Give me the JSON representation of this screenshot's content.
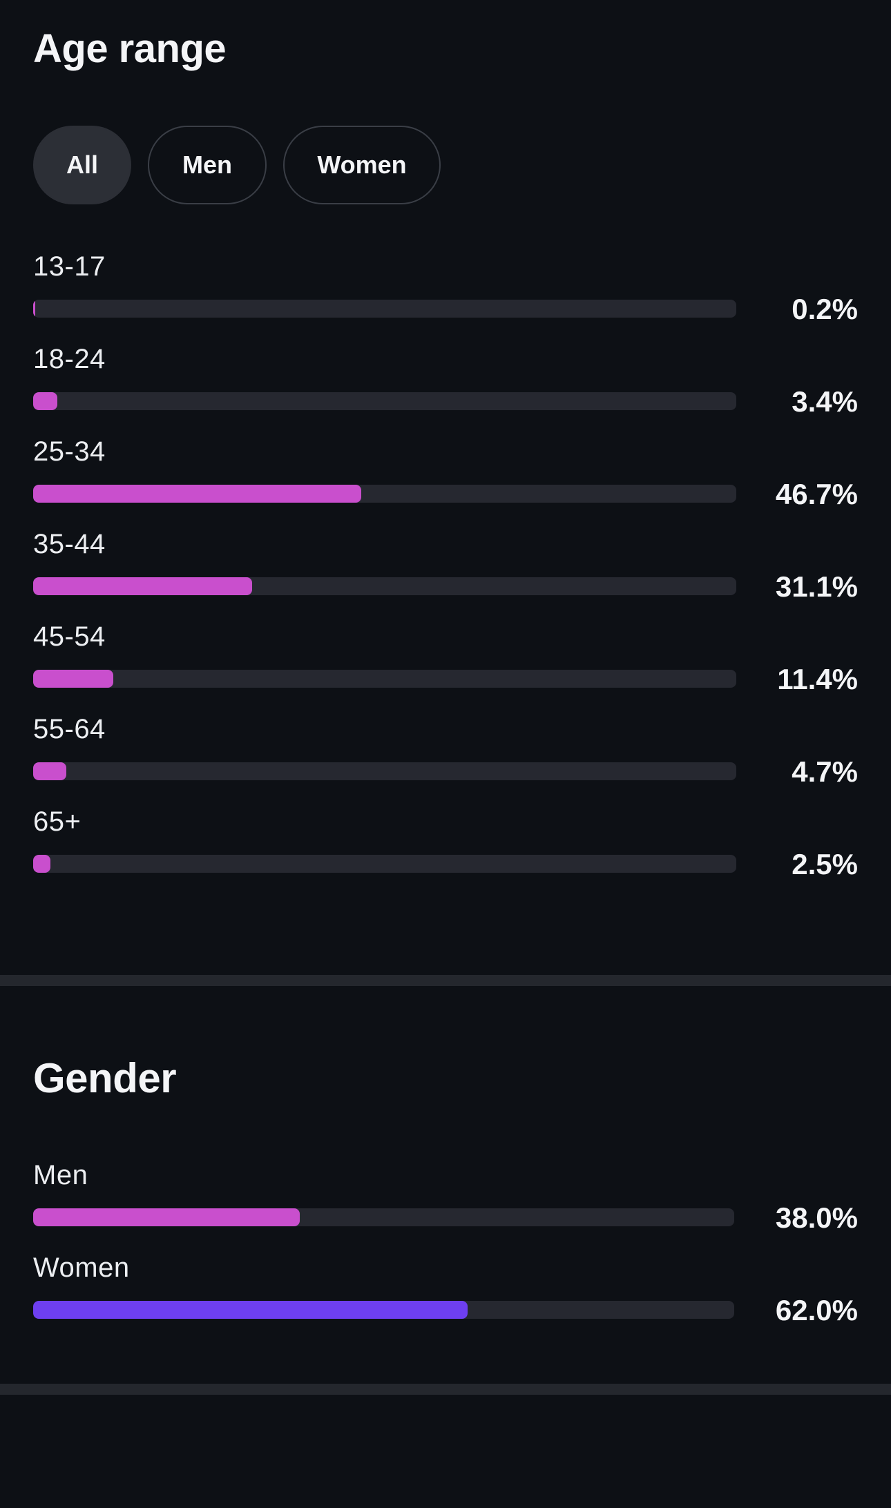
{
  "age_section": {
    "title": "Age range",
    "filters": [
      {
        "label": "All",
        "active": true
      },
      {
        "label": "Men",
        "active": false
      },
      {
        "label": "Women",
        "active": false
      }
    ],
    "rows": [
      {
        "label": "13-17",
        "value_text": "0.2%",
        "percent": 0.2,
        "color": "#c94fcd"
      },
      {
        "label": "18-24",
        "value_text": "3.4%",
        "percent": 3.4,
        "color": "#c94fcd"
      },
      {
        "label": "25-34",
        "value_text": "46.7%",
        "percent": 46.7,
        "color": "#c94fcd"
      },
      {
        "label": "35-44",
        "value_text": "31.1%",
        "percent": 31.1,
        "color": "#c94fcd"
      },
      {
        "label": "45-54",
        "value_text": "11.4%",
        "percent": 11.4,
        "color": "#c94fcd"
      },
      {
        "label": "55-64",
        "value_text": "4.7%",
        "percent": 4.7,
        "color": "#c94fcd"
      },
      {
        "label": "65+",
        "value_text": "2.5%",
        "percent": 2.5,
        "color": "#c94fcd"
      }
    ]
  },
  "gender_section": {
    "title": "Gender",
    "rows": [
      {
        "label": "Men",
        "value_text": "38.0%",
        "percent": 38.0,
        "color": "#c94fcd"
      },
      {
        "label": "Women",
        "value_text": "62.0%",
        "percent": 62.0,
        "color": "#6e3ff0"
      }
    ]
  },
  "colors": {
    "background": "#0d1015",
    "track": "#262830",
    "divider": "#24272d",
    "men_accent": "#c94fcd",
    "women_accent": "#6e3ff0"
  }
}
